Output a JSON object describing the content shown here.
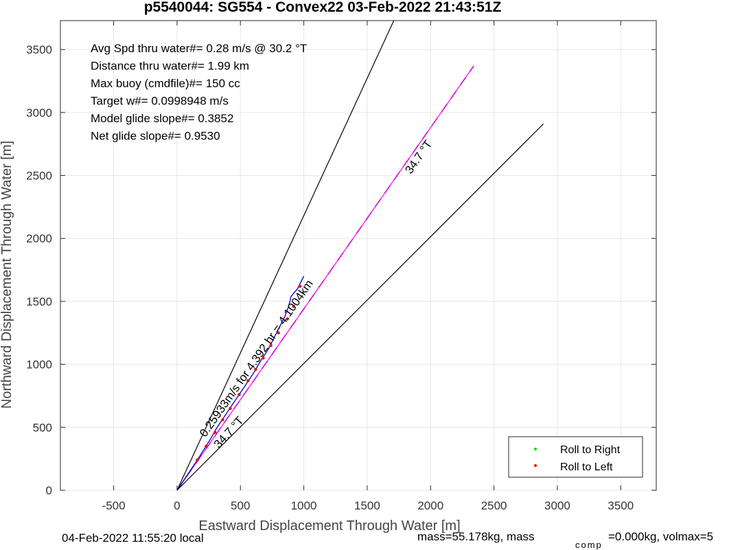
{
  "chart_data": {
    "type": "line",
    "title": "p5540044: SG554 - Convex22 03-Feb-2022 21:43:51Z",
    "xlabel": "Eastward Displacement Through Water [m]",
    "ylabel": "Northward Displacement Through Water [m]",
    "xlim": [
      -920,
      3780
    ],
    "ylim": [
      0,
      3730
    ],
    "xticks": [
      -500,
      0,
      500,
      1000,
      1500,
      2000,
      2500,
      3000,
      3500
    ],
    "yticks": [
      0,
      500,
      1000,
      1500,
      2000,
      2500,
      3000,
      3500
    ],
    "grid": true,
    "legend": {
      "placement": "bottom-right",
      "entries": [
        {
          "label": "Roll to Right",
          "color": "#00dd00"
        },
        {
          "label": "Roll to Left",
          "color": "#ee0000"
        }
      ]
    },
    "reference_lines": [
      {
        "color": "#000000",
        "x": [
          0,
          1710
        ],
        "y": [
          0,
          3730
        ]
      },
      {
        "color": "#000000",
        "x": [
          0,
          2890
        ],
        "y": [
          0,
          2910
        ]
      },
      {
        "color": "#000000",
        "dash": true,
        "x": [
          0,
          2340
        ],
        "y": [
          0,
          3370
        ]
      },
      {
        "color": "#ff00ff",
        "x": [
          0,
          2340
        ],
        "y": [
          0,
          3370
        ]
      }
    ],
    "track": {
      "color": "#0000cc",
      "x": [
        0,
        100,
        160,
        210,
        260,
        310,
        370,
        430,
        490,
        550,
        610,
        660,
        720,
        770,
        810,
        850,
        880,
        900,
        950,
        990,
        1000
      ],
      "y": [
        0,
        150,
        240,
        320,
        400,
        490,
        580,
        670,
        760,
        850,
        940,
        1030,
        1120,
        1220,
        1300,
        1380,
        1460,
        1540,
        1600,
        1680,
        1700
      ]
    },
    "roll_left_points": {
      "color": "#ee0000",
      "x": [
        160,
        230,
        300,
        360,
        420,
        490,
        560,
        620,
        680,
        740,
        800,
        870,
        920,
        970
      ],
      "y": [
        240,
        350,
        460,
        560,
        650,
        760,
        870,
        960,
        1050,
        1150,
        1250,
        1360,
        1460,
        1620
      ]
    },
    "stat_lines": [
      "Avg Spd thru water#=  0.28 m/s @  30.2        °T",
      "Distance thru water#=  1.99 km",
      "Max buoy (cmdfile)#= 150 cc",
      "Target w#= 0.0998948 m/s",
      "Model glide slope#= 0.3852",
      "Net glide slope#= 0.9530"
    ],
    "line_annotations": [
      {
        "text": "34.7 °T",
        "x": 1930,
        "y": 2630,
        "angle": -55
      },
      {
        "text": "0.25933m/s for 4.392 hr = 4.1004km",
        "x": 650,
        "y": 1030,
        "angle": -55
      },
      {
        "text": "34.7 °T",
        "x": 430,
        "y": 440,
        "angle": -48
      }
    ]
  },
  "footer": {
    "local_time": "04-Feb-2022 11:55:20 local",
    "mass_text": "mass=55.178kg, mass",
    "comp_sub": "comp",
    "comp_text": "=0.000kg, volmax=5"
  }
}
